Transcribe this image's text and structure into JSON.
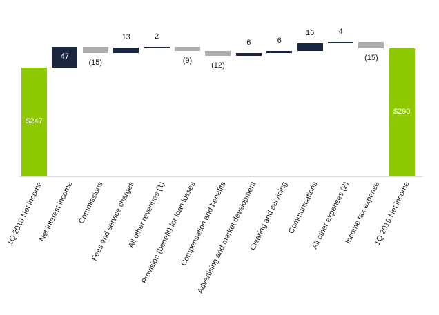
{
  "chart_data": {
    "type": "waterfall",
    "title": "",
    "xlabel": "",
    "ylabel": "",
    "ylim": [
      0,
      305
    ],
    "grid": false,
    "y_axis_visible": false,
    "legend": "none",
    "categories": [
      "1Q 2018 Net income",
      "Net interest income",
      "Commissions",
      "Fees and service charges",
      "All other revenues (1)",
      "Provision (benefit) for loan losses",
      "Compensation and benefits",
      "Advertising and market development",
      "Clearing and servicing",
      "Communications",
      "All other expenses (2)",
      "Income tax expense",
      "1Q 2019 Net income"
    ],
    "values": [
      247,
      47,
      -15,
      13,
      2,
      -9,
      -12,
      6,
      6,
      16,
      4,
      -15,
      290
    ],
    "bar_roles": [
      "total",
      "delta",
      "delta",
      "delta",
      "delta",
      "delta",
      "delta",
      "delta",
      "delta",
      "delta",
      "delta",
      "delta",
      "total"
    ],
    "data_labels": [
      "$247",
      "47",
      "(15)",
      "13",
      "2",
      "(9)",
      "(12)",
      "6",
      "6",
      "16",
      "4",
      "(15)",
      "$290"
    ],
    "label_placement": [
      "inside",
      "inside",
      "below",
      "above",
      "above",
      "below",
      "below",
      "above",
      "above",
      "above",
      "above",
      "below",
      "inside"
    ],
    "colors": {
      "total": "#8dc800",
      "positive": "#1b2740",
      "negative": "#adadad",
      "axis_line": "#d9d9d9",
      "label_text": "#1a1a1a",
      "inside_label_text": "#ffffff"
    }
  }
}
